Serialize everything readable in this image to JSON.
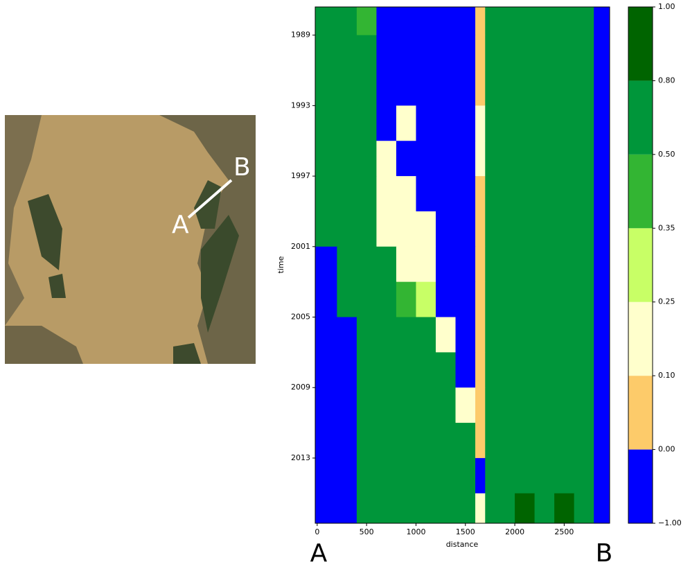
{
  "image": {
    "point_a": "A",
    "point_b": "B"
  },
  "chart_data": {
    "type": "heatmap",
    "xlabel": "distance",
    "ylabel": "time",
    "x_edges": [
      -20,
      200,
      400,
      600,
      800,
      1000,
      1200,
      1400,
      1600,
      1700,
      1800,
      2000,
      2200,
      2400,
      2600,
      2800,
      2960
    ],
    "y_edges": [
      1987.4,
      1989,
      1991,
      1993,
      1995,
      1997,
      1999,
      2001,
      2003,
      2005,
      2007,
      2009,
      2011,
      2013,
      2015,
      2016.7
    ],
    "z": [
      [
        0.65,
        0.65,
        0.42,
        -0.5,
        -0.5,
        -0.5,
        -0.5,
        -0.5,
        0.05,
        0.65,
        0.65,
        0.65,
        0.65,
        0.65,
        0.65,
        -0.5
      ],
      [
        0.65,
        0.65,
        0.65,
        -0.5,
        -0.5,
        -0.5,
        -0.5,
        -0.5,
        0.05,
        0.65,
        0.65,
        0.65,
        0.65,
        0.65,
        0.65,
        -0.5
      ],
      [
        0.65,
        0.65,
        0.65,
        -0.5,
        -0.5,
        -0.5,
        -0.5,
        -0.5,
        0.05,
        0.65,
        0.65,
        0.65,
        0.65,
        0.65,
        0.65,
        -0.5
      ],
      [
        0.65,
        0.65,
        0.65,
        -0.5,
        0.18,
        -0.5,
        -0.5,
        -0.5,
        0.18,
        0.65,
        0.65,
        0.65,
        0.65,
        0.65,
        0.65,
        -0.5
      ],
      [
        0.65,
        0.65,
        0.65,
        0.18,
        -0.5,
        -0.5,
        -0.5,
        -0.5,
        0.18,
        0.65,
        0.65,
        0.65,
        0.65,
        0.65,
        0.65,
        -0.5
      ],
      [
        0.65,
        0.65,
        0.65,
        0.18,
        0.18,
        -0.5,
        -0.5,
        -0.5,
        0.05,
        0.65,
        0.65,
        0.65,
        0.65,
        0.65,
        0.65,
        -0.5
      ],
      [
        0.65,
        0.65,
        0.65,
        0.18,
        0.18,
        0.18,
        -0.5,
        -0.5,
        0.05,
        0.65,
        0.65,
        0.65,
        0.65,
        0.65,
        0.65,
        -0.5
      ],
      [
        -0.5,
        0.65,
        0.65,
        0.65,
        0.18,
        0.18,
        -0.5,
        -0.5,
        0.05,
        0.65,
        0.65,
        0.65,
        0.65,
        0.65,
        0.65,
        -0.5
      ],
      [
        -0.5,
        0.65,
        0.65,
        0.65,
        0.42,
        0.3,
        -0.5,
        -0.5,
        0.05,
        0.65,
        0.65,
        0.65,
        0.65,
        0.65,
        0.65,
        -0.5
      ],
      [
        -0.5,
        -0.5,
        0.65,
        0.65,
        0.65,
        0.65,
        0.18,
        -0.5,
        0.05,
        0.65,
        0.65,
        0.65,
        0.65,
        0.65,
        0.65,
        -0.5
      ],
      [
        -0.5,
        -0.5,
        0.65,
        0.65,
        0.65,
        0.65,
        0.65,
        -0.5,
        0.05,
        0.65,
        0.65,
        0.65,
        0.65,
        0.65,
        0.65,
        -0.5
      ],
      [
        -0.5,
        -0.5,
        0.65,
        0.65,
        0.65,
        0.65,
        0.65,
        0.18,
        0.05,
        0.65,
        0.65,
        0.65,
        0.65,
        0.65,
        0.65,
        -0.5
      ],
      [
        -0.5,
        -0.5,
        0.65,
        0.65,
        0.65,
        0.65,
        0.65,
        0.65,
        0.05,
        0.65,
        0.65,
        0.65,
        0.65,
        0.65,
        0.65,
        -0.5
      ],
      [
        -0.5,
        -0.5,
        0.65,
        0.65,
        0.65,
        0.65,
        0.65,
        0.65,
        -0.5,
        0.65,
        0.65,
        0.65,
        0.65,
        0.65,
        0.65,
        -0.5
      ],
      [
        -0.5,
        -0.5,
        0.65,
        0.65,
        0.65,
        0.65,
        0.65,
        0.65,
        0.18,
        0.65,
        0.65,
        0.9,
        0.65,
        0.9,
        0.65,
        -0.5
      ]
    ],
    "xlim": [
      -20,
      2960
    ],
    "ylim": [
      1987.4,
      2016.7
    ],
    "xticks": [
      0,
      500,
      1000,
      1500,
      2000,
      2500
    ],
    "yticks": [
      1989,
      1993,
      1997,
      2001,
      2005,
      2009,
      2013
    ],
    "colorbar": {
      "levels": [
        -1,
        0,
        0.1,
        0.25,
        0.35,
        0.5,
        0.8,
        1
      ],
      "colors": [
        "#0000ff",
        "#fdcb6a",
        "#ffffcc",
        "#c8ff66",
        "#33b533",
        "#00963a",
        "#006400"
      ],
      "ticks": [
        {
          "value": -1,
          "label": "−1.00"
        },
        {
          "value": 0,
          "label": "0.00"
        },
        {
          "value": 0.1,
          "label": "0.10"
        },
        {
          "value": 0.25,
          "label": "0.25"
        },
        {
          "value": 0.35,
          "label": "0.35"
        },
        {
          "value": 0.5,
          "label": "0.50"
        },
        {
          "value": 0.8,
          "label": "0.80"
        },
        {
          "value": 1,
          "label": "1.00"
        }
      ]
    },
    "start_label": "A",
    "end_label": "B"
  }
}
